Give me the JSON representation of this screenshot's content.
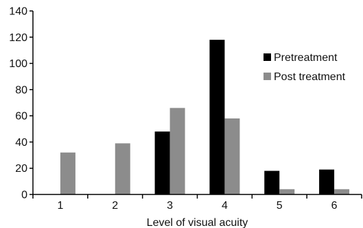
{
  "chart_data": {
    "type": "bar",
    "title": "",
    "xlabel": "Level of visual acuity",
    "ylabel": "",
    "categories": [
      "1",
      "2",
      "3",
      "4",
      "5",
      "6"
    ],
    "ylim": [
      0,
      140
    ],
    "yticks": [
      "0",
      "20",
      "40",
      "60",
      "80",
      "100",
      "120",
      "140"
    ],
    "grid": false,
    "legend_position": "right",
    "series": [
      {
        "name": "Pretreatment",
        "color": "#000000",
        "values": [
          0,
          0,
          48,
          118,
          18,
          19
        ]
      },
      {
        "name": "Post treatment",
        "color": "#8c8c8c",
        "values": [
          32,
          39,
          66,
          58,
          4,
          4
        ]
      }
    ]
  }
}
